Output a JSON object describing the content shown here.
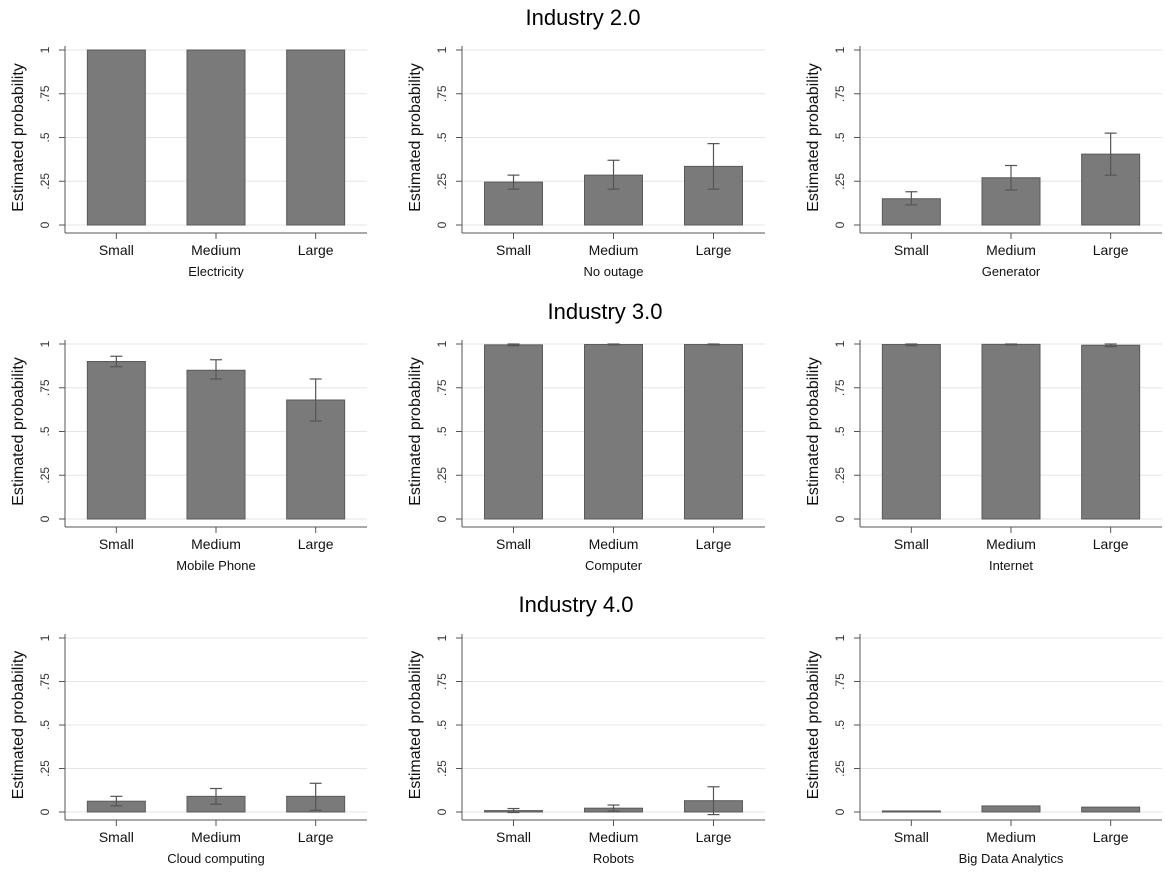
{
  "sections": [
    {
      "title": "Industry 2.0"
    },
    {
      "title": "Industry 3.0"
    },
    {
      "title": "Industry 4.0"
    }
  ],
  "colors": {
    "bar": "#7a7a7a",
    "bar_edge": "#5a5a5a",
    "error_bar": "#555555",
    "axis": "#555555",
    "grid": "#e6e6e6"
  },
  "chart_data": [
    {
      "type": "bar",
      "xlabel": "Electricity",
      "ylabel": "Estimated probability",
      "categories": [
        "Small",
        "Medium",
        "Large"
      ],
      "values": [
        1.0,
        1.0,
        1.0
      ],
      "ci_low": [
        null,
        null,
        null
      ],
      "ci_high": [
        null,
        null,
        null
      ],
      "ylim": [
        0,
        1
      ],
      "yticks": [
        "0",
        ".25",
        ".5",
        ".75",
        "1"
      ],
      "grid": true
    },
    {
      "type": "bar",
      "xlabel": "No outage",
      "ylabel": "Estimated probability",
      "categories": [
        "Small",
        "Medium",
        "Large"
      ],
      "values": [
        0.245,
        0.285,
        0.335
      ],
      "ci_low": [
        0.205,
        0.205,
        0.205
      ],
      "ci_high": [
        0.285,
        0.37,
        0.465
      ],
      "ylim": [
        0,
        1
      ],
      "yticks": [
        "0",
        ".25",
        ".5",
        ".75",
        "1"
      ],
      "grid": true
    },
    {
      "type": "bar",
      "xlabel": "Generator",
      "ylabel": "Estimated probability",
      "categories": [
        "Small",
        "Medium",
        "Large"
      ],
      "values": [
        0.15,
        0.27,
        0.405
      ],
      "ci_low": [
        0.115,
        0.2,
        0.285
      ],
      "ci_high": [
        0.19,
        0.34,
        0.525
      ],
      "ylim": [
        0,
        1
      ],
      "yticks": [
        "0",
        ".25",
        ".5",
        ".75",
        "1"
      ],
      "grid": true
    },
    {
      "type": "bar",
      "xlabel": "Mobile Phone",
      "ylabel": "Estimated probability",
      "categories": [
        "Small",
        "Medium",
        "Large"
      ],
      "values": [
        0.9,
        0.85,
        0.68
      ],
      "ci_low": [
        0.87,
        0.8,
        0.56
      ],
      "ci_high": [
        0.93,
        0.91,
        0.8
      ],
      "ylim": [
        0,
        1
      ],
      "yticks": [
        "0",
        ".25",
        ".5",
        ".75",
        "1"
      ],
      "grid": true
    },
    {
      "type": "bar",
      "xlabel": "Computer",
      "ylabel": "Estimated probability",
      "categories": [
        "Small",
        "Medium",
        "Large"
      ],
      "values": [
        0.995,
        0.997,
        0.997
      ],
      "ci_low": [
        0.99,
        0.995,
        0.995
      ],
      "ci_high": [
        1.0,
        1.0,
        1.0
      ],
      "ylim": [
        0,
        1
      ],
      "yticks": [
        "0",
        ".25",
        ".5",
        ".75",
        "1"
      ],
      "grid": true
    },
    {
      "type": "bar",
      "xlabel": "Internet",
      "ylabel": "Estimated probability",
      "categories": [
        "Small",
        "Medium",
        "Large"
      ],
      "values": [
        0.997,
        0.998,
        0.993
      ],
      "ci_low": [
        0.99,
        0.995,
        0.985
      ],
      "ci_high": [
        1.0,
        1.0,
        1.0
      ],
      "ylim": [
        0,
        1
      ],
      "yticks": [
        "0",
        ".25",
        ".5",
        ".75",
        "1"
      ],
      "grid": true
    },
    {
      "type": "bar",
      "xlabel": "Cloud computing",
      "ylabel": "Estimated probability",
      "categories": [
        "Small",
        "Medium",
        "Large"
      ],
      "values": [
        0.062,
        0.09,
        0.09
      ],
      "ci_low": [
        0.035,
        0.045,
        0.01
      ],
      "ci_high": [
        0.09,
        0.135,
        0.165
      ],
      "ylim": [
        0,
        1
      ],
      "yticks": [
        "0",
        ".25",
        ".5",
        ".75",
        "1"
      ],
      "grid": true
    },
    {
      "type": "bar",
      "xlabel": "Robots",
      "ylabel": "Estimated probability",
      "categories": [
        "Small",
        "Medium",
        "Large"
      ],
      "values": [
        0.008,
        0.022,
        0.065
      ],
      "ci_low": [
        -0.003,
        0.005,
        -0.015
      ],
      "ci_high": [
        0.02,
        0.04,
        0.145
      ],
      "ylim": [
        0,
        1
      ],
      "yticks": [
        "0",
        ".25",
        ".5",
        ".75",
        "1"
      ],
      "grid": true
    },
    {
      "type": "bar",
      "xlabel": "Big Data Analytics",
      "ylabel": "Estimated probability",
      "categories": [
        "Small",
        "Medium",
        "Large"
      ],
      "values": [
        0.006,
        0.035,
        0.028
      ],
      "ci_low": [
        null,
        null,
        null
      ],
      "ci_high": [
        null,
        null,
        null
      ],
      "ylim": [
        0,
        1
      ],
      "yticks": [
        "0",
        ".25",
        ".5",
        ".75",
        "1"
      ],
      "grid": true
    }
  ]
}
